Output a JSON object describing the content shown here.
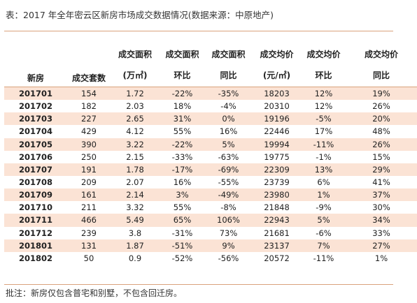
{
  "caption": "表：2017 年全年密云区新房市场成交数据情况(数据来源：中原地产)",
  "header": {
    "col0": "新房",
    "col1": "成交套数",
    "top": [
      "成交面积",
      "成交面积",
      "成交面积",
      "成交均价",
      "成交均价",
      "成交均价"
    ],
    "sub": [
      "(万㎡)",
      "环比",
      "同比",
      "(元/㎡)",
      "环比",
      "同比"
    ]
  },
  "rows": [
    {
      "ym": "201701",
      "units": "154",
      "area": "1.72",
      "area_mom": "-22%",
      "area_yoy": "-35%",
      "price": "18203",
      "price_mom": "12%",
      "price_yoy": "19%"
    },
    {
      "ym": "201702",
      "units": "182",
      "area": "2.03",
      "area_mom": "18%",
      "area_yoy": "-4%",
      "price": "20310",
      "price_mom": "12%",
      "price_yoy": "26%"
    },
    {
      "ym": "201703",
      "units": "227",
      "area": "2.65",
      "area_mom": "31%",
      "area_yoy": "0%",
      "price": "19196",
      "price_mom": "-5%",
      "price_yoy": "20%"
    },
    {
      "ym": "201704",
      "units": "429",
      "area": "4.12",
      "area_mom": "55%",
      "area_yoy": "16%",
      "price": "22446",
      "price_mom": "17%",
      "price_yoy": "48%"
    },
    {
      "ym": "201705",
      "units": "390",
      "area": "3.22",
      "area_mom": "-22%",
      "area_yoy": "5%",
      "price": "19994",
      "price_mom": "-11%",
      "price_yoy": "26%"
    },
    {
      "ym": "201706",
      "units": "250",
      "area": "2.15",
      "area_mom": "-33%",
      "area_yoy": "-63%",
      "price": "19775",
      "price_mom": "-1%",
      "price_yoy": "15%"
    },
    {
      "ym": "201707",
      "units": "191",
      "area": "1.78",
      "area_mom": "-17%",
      "area_yoy": "-69%",
      "price": "22309",
      "price_mom": "13%",
      "price_yoy": "29%"
    },
    {
      "ym": "201708",
      "units": "209",
      "area": "2.07",
      "area_mom": "16%",
      "area_yoy": "-55%",
      "price": "23739",
      "price_mom": "6%",
      "price_yoy": "41%"
    },
    {
      "ym": "201709",
      "units": "161",
      "area": "2.14",
      "area_mom": "3%",
      "area_yoy": "-49%",
      "price": "23980",
      "price_mom": "1%",
      "price_yoy": "37%"
    },
    {
      "ym": "201710",
      "units": "211",
      "area": "3.32",
      "area_mom": "55%",
      "area_yoy": "-8%",
      "price": "21848",
      "price_mom": "-9%",
      "price_yoy": "30%"
    },
    {
      "ym": "201711",
      "units": "466",
      "area": "5.49",
      "area_mom": "65%",
      "area_yoy": "106%",
      "price": "22943",
      "price_mom": "5%",
      "price_yoy": "34%"
    },
    {
      "ym": "201712",
      "units": "239",
      "area": "3.8",
      "area_mom": "-31%",
      "area_yoy": "73%",
      "price": "21681",
      "price_mom": "-6%",
      "price_yoy": "33%"
    },
    {
      "ym": "201801",
      "units": "131",
      "area": "1.87",
      "area_mom": "-51%",
      "area_yoy": "9%",
      "price": "23137",
      "price_mom": "7%",
      "price_yoy": "27%"
    },
    {
      "ym": "201802",
      "units": "50",
      "area": "0.9",
      "area_mom": "-52%",
      "area_yoy": "-56%",
      "price": "20572",
      "price_mom": "-11%",
      "price_yoy": "1%"
    }
  ],
  "note": "批注：新房仅包含普宅和别墅，不包含回迁房。",
  "colors": {
    "stripe": "#fbe3d5",
    "rule": "#d9a27c"
  }
}
